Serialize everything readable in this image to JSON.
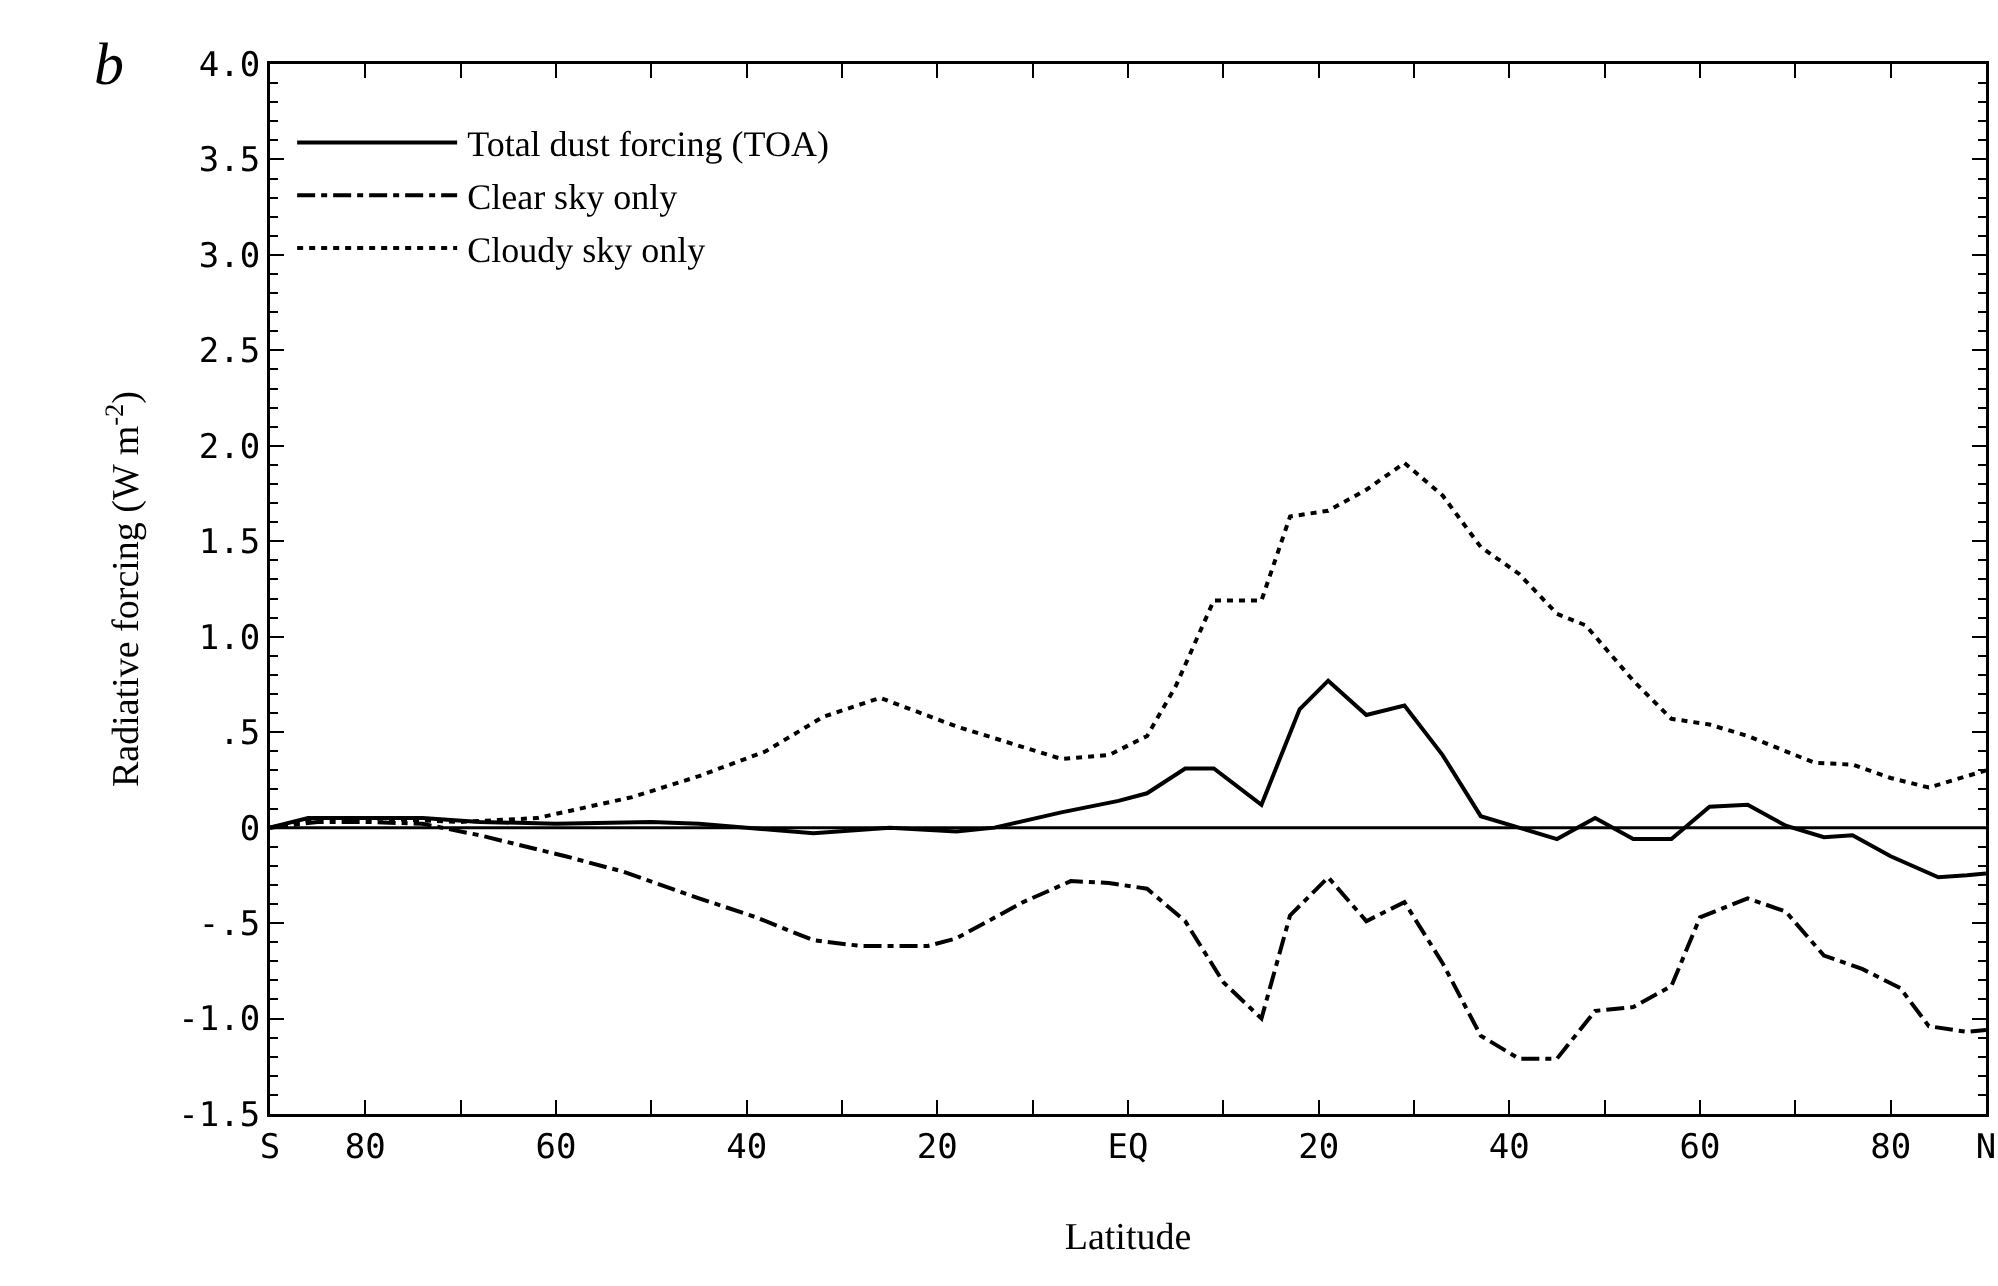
{
  "chart_data": {
    "type": "line",
    "xlabel": "Latitude",
    "ylabel": "Radiative forcing (W m$^{-2}$)",
    "annotations": [
      "b"
    ],
    "xlim": [
      -90,
      90
    ],
    "xticks": [
      {
        "value": -90,
        "label": "S"
      },
      {
        "value": -80,
        "label": "80"
      },
      {
        "value": -70,
        "label": null
      },
      {
        "value": -60,
        "label": "60"
      },
      {
        "value": -50,
        "label": null
      },
      {
        "value": -40,
        "label": "40"
      },
      {
        "value": -30,
        "label": null
      },
      {
        "value": -20,
        "label": "20"
      },
      {
        "value": -10,
        "label": null
      },
      {
        "value": 0,
        "label": "EQ"
      },
      {
        "value": 10,
        "label": null
      },
      {
        "value": 20,
        "label": "20"
      },
      {
        "value": 30,
        "label": null
      },
      {
        "value": 40,
        "label": "40"
      },
      {
        "value": 50,
        "label": null
      },
      {
        "value": 60,
        "label": "60"
      },
      {
        "value": 70,
        "label": null
      },
      {
        "value": 80,
        "label": "80"
      },
      {
        "value": 90,
        "label": "N"
      }
    ],
    "ylim": [
      -1.5,
      4.0
    ],
    "yticks": [
      {
        "value": -1.5,
        "label": "-1.5"
      },
      {
        "value": -1,
        "label": "-1.0"
      },
      {
        "value": -0.5,
        "label": "-.5"
      },
      0,
      {
        "value": 0.5,
        "label": ".5"
      },
      {
        "value": 1,
        "label": "1.0"
      },
      1.5,
      {
        "value": 2,
        "label": "2.0"
      },
      2.5,
      {
        "value": 3,
        "label": "3.0"
      },
      3.5,
      {
        "value": 4,
        "label": "4.0"
      }
    ],
    "grid": false,
    "legend": "top left",
    "marker": "none",
    "ref_lines": [
      {
        "axis": "y",
        "value": 0,
        "color": "#000000",
        "line_style": "solid"
      }
    ],
    "series": [
      {
        "name": "Total dust forcing (TOA)",
        "color": "#000000",
        "line_style": "solid",
        "x": [
          -90,
          -86,
          -80,
          -74,
          -68,
          -60,
          -50,
          -45,
          -40,
          -33,
          -25,
          -18,
          -14,
          -7,
          -1,
          2,
          6,
          9,
          14,
          18,
          21,
          25,
          29,
          33,
          37,
          41,
          45,
          49,
          53,
          57,
          61,
          65,
          69,
          73,
          76,
          80,
          85,
          88,
          90
        ],
        "values": [
          0,
          0.05,
          0.05,
          0.05,
          0.03,
          0.02,
          0.03,
          0.02,
          0,
          -0.03,
          0,
          -0.02,
          0,
          0.08,
          0.14,
          0.18,
          0.31,
          0.31,
          0.12,
          0.62,
          0.77,
          0.59,
          0.64,
          0.38,
          0.06,
          0,
          -0.06,
          0.05,
          -0.06,
          -0.06,
          0.11,
          0.12,
          0.01,
          -0.05,
          -0.04,
          -0.15,
          -0.26,
          -0.25,
          -0.24
        ]
      },
      {
        "name": "Clear sky only",
        "color": "#000000",
        "line_style": "dashdot",
        "x": [
          -90,
          -85,
          -80,
          -74,
          -68,
          -59,
          -53,
          -45,
          -39,
          -33,
          -28,
          -21,
          -18,
          -11,
          -6,
          -2,
          2,
          6,
          10,
          14,
          17,
          21,
          25,
          29,
          33,
          37,
          41,
          45,
          49,
          53,
          57,
          60,
          65,
          69,
          73,
          77,
          81,
          84,
          88,
          90
        ],
        "values": [
          0,
          0.03,
          0.03,
          0.02,
          -0.04,
          -0.15,
          -0.23,
          -0.37,
          -0.47,
          -0.59,
          -0.62,
          -0.62,
          -0.58,
          -0.39,
          -0.28,
          -0.29,
          -0.32,
          -0.49,
          -0.81,
          -1.0,
          -0.46,
          -0.26,
          -0.49,
          -0.39,
          -0.71,
          -1.09,
          -1.21,
          -1.21,
          -0.96,
          -0.94,
          -0.83,
          -0.47,
          -0.37,
          -0.44,
          -0.67,
          -0.74,
          -0.84,
          -1.04,
          -1.07,
          -1.06
        ]
      },
      {
        "name": "Cloudy sky only",
        "color": "#000000",
        "line_style": "dotted",
        "x": [
          -90,
          -85,
          -80,
          -70,
          -62,
          -52,
          -45,
          -38,
          -32,
          -26,
          -18,
          -7,
          -2,
          2,
          5,
          9,
          14,
          17,
          21,
          25,
          29,
          33,
          37,
          41,
          45,
          48,
          53,
          57,
          61,
          65,
          68,
          72,
          76,
          80,
          84,
          88,
          90
        ],
        "values": [
          0,
          0.05,
          0.05,
          0.03,
          0.05,
          0.16,
          0.27,
          0.4,
          0.58,
          0.68,
          0.53,
          0.36,
          0.38,
          0.48,
          0.74,
          1.19,
          1.19,
          1.63,
          1.66,
          1.77,
          1.91,
          1.74,
          1.47,
          1.33,
          1.12,
          1.06,
          0.77,
          0.57,
          0.54,
          0.48,
          0.42,
          0.34,
          0.33,
          0.26,
          0.21,
          0.27,
          0.3
        ]
      }
    ]
  }
}
